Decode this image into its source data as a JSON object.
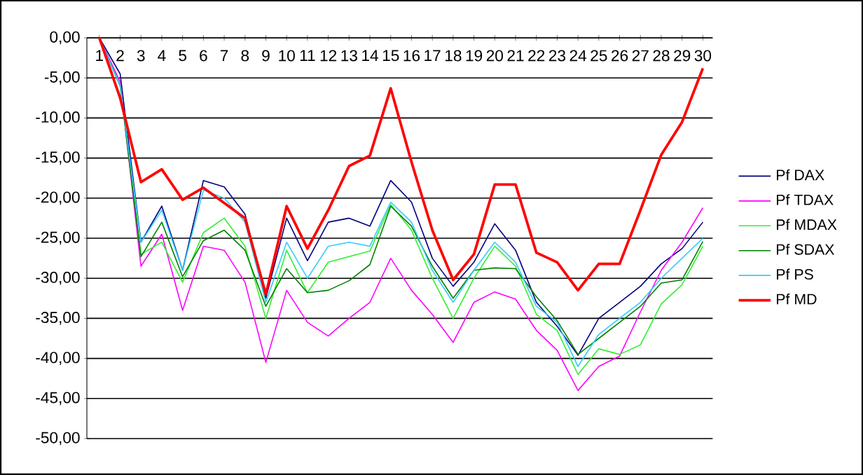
{
  "chart_data": {
    "type": "line",
    "categories": [
      "1",
      "2",
      "3",
      "4",
      "5",
      "6",
      "7",
      "8",
      "9",
      "10",
      "11",
      "12",
      "13",
      "14",
      "15",
      "16",
      "17",
      "18",
      "19",
      "20",
      "21",
      "22",
      "23",
      "24",
      "25",
      "26",
      "27",
      "28",
      "29",
      "30"
    ],
    "ylim": [
      -50,
      0
    ],
    "yticks": [
      {
        "value": 0,
        "label": "0,00"
      },
      {
        "value": -5,
        "label": "-5,00"
      },
      {
        "value": -10,
        "label": "-10,00"
      },
      {
        "value": -15,
        "label": "-15,00"
      },
      {
        "value": -20,
        "label": "-20,00"
      },
      {
        "value": -25,
        "label": "-25,00"
      },
      {
        "value": -30,
        "label": "-30,00"
      },
      {
        "value": -35,
        "label": "-35,00"
      },
      {
        "value": -40,
        "label": "-40,00"
      },
      {
        "value": -45,
        "label": "-45,00"
      },
      {
        "value": -50,
        "label": "-50,00"
      }
    ],
    "grid": "y",
    "legend": "right",
    "marker": "none",
    "line_style": "solid",
    "series": [
      {
        "name": "Pf DAX",
        "color": "#000080",
        "values": [
          0,
          -4.5,
          -25.5,
          -21,
          -29,
          -17.8,
          -18.6,
          -22,
          -32.5,
          -22.5,
          -27.8,
          -23,
          -22.5,
          -23.5,
          -17.8,
          -20.5,
          -27.5,
          -31,
          -28,
          -23.2,
          -26.5,
          -33,
          -36,
          -39.6,
          -35,
          -33,
          -31,
          -28.2,
          -26.3,
          -23
        ]
      },
      {
        "name": "Pf TDAX",
        "color": "#ff00ff",
        "values": [
          0,
          -5.5,
          -28.5,
          -24.5,
          -34,
          -26,
          -26.5,
          -30.5,
          -40.5,
          -31.5,
          -35.5,
          -37.2,
          -35,
          -33,
          -27.5,
          -31.5,
          -34.5,
          -38,
          -33,
          -31.7,
          -32.6,
          -36.5,
          -39,
          -44,
          -41,
          -39.7,
          -34.2,
          -29,
          -25.5,
          -21.2
        ]
      },
      {
        "name": "Pf MDAX",
        "color": "#33ee33",
        "values": [
          0,
          -6,
          -27,
          -25.5,
          -30.5,
          -24.3,
          -22.5,
          -26,
          -35,
          -26.5,
          -31.8,
          -28,
          -27.3,
          -26.6,
          -20.8,
          -24,
          -30,
          -35,
          -30,
          -26,
          -28.5,
          -34.5,
          -36.5,
          -42,
          -38.8,
          -39.5,
          -38.3,
          -33.2,
          -30.8,
          -26
        ]
      },
      {
        "name": "Pf SDAX",
        "color": "#008000",
        "values": [
          0,
          -6,
          -27.3,
          -23,
          -29.8,
          -25.3,
          -24,
          -26.5,
          -33.5,
          -28.8,
          -31.8,
          -31.5,
          -30.3,
          -28.3,
          -21,
          -23.5,
          -28.5,
          -32.5,
          -29,
          -28.7,
          -28.8,
          -32.3,
          -35.3,
          -39.5,
          -37.5,
          -35.5,
          -33.5,
          -30.6,
          -30.2,
          -25.4
        ]
      },
      {
        "name": "Pf PS",
        "color": "#33ccff",
        "values": [
          0,
          -6,
          -25.5,
          -21.5,
          -29,
          -19,
          -20,
          -23,
          -33,
          -25.5,
          -30,
          -26,
          -25.5,
          -26,
          -20.5,
          -23,
          -29,
          -33,
          -29,
          -25.5,
          -28,
          -33.5,
          -35.5,
          -41,
          -37,
          -35,
          -33,
          -30,
          -27.5,
          -25
        ]
      },
      {
        "name": "Pf MD",
        "color": "#ff0000",
        "values": [
          0,
          -7.5,
          -18,
          -16.4,
          -20.2,
          -18.7,
          -20.6,
          -22.5,
          -32,
          -21,
          -26.3,
          -21.5,
          -16,
          -14.7,
          -6.3,
          -15.5,
          -24,
          -30.2,
          -27,
          -18.3,
          -18.3,
          -26.8,
          -28,
          -31.5,
          -28.2,
          -28.2,
          -21.5,
          -14.6,
          -10.5,
          -3.8
        ]
      }
    ]
  }
}
